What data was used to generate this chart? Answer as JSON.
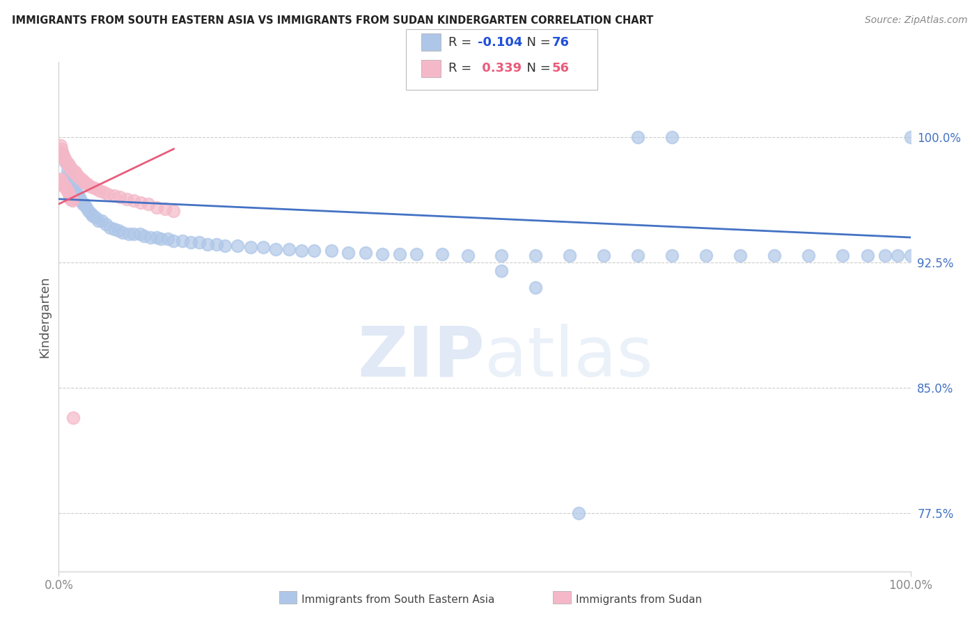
{
  "title": "IMMIGRANTS FROM SOUTH EASTERN ASIA VS IMMIGRANTS FROM SUDAN KINDERGARTEN CORRELATION CHART",
  "source": "Source: ZipAtlas.com",
  "ylabel": "Kindergarten",
  "y_ticks": [
    0.775,
    0.85,
    0.925,
    1.0
  ],
  "y_tick_labels": [
    "77.5%",
    "85.0%",
    "92.5%",
    "100.0%"
  ],
  "xlim": [
    0.0,
    1.0
  ],
  "ylim": [
    0.74,
    1.045
  ],
  "legend_color1": "#aec6e8",
  "legend_color2": "#f4b8c8",
  "blue_color": "#aec6e8",
  "pink_color": "#f4b8c8",
  "trendline1_color": "#4472c4",
  "trendline2_color": "#e85c7a",
  "watermark_zip": "ZIP",
  "watermark_atlas": "atlas",
  "legend_r1_color": "#1f4fd8",
  "legend_r2_color": "#e85c7a",
  "ytick_color": "#4472c4",
  "xtick_color": "#888888",
  "blue_scatter_x": [
    0.005,
    0.008,
    0.01,
    0.012,
    0.014,
    0.016,
    0.018,
    0.02,
    0.022,
    0.024,
    0.026,
    0.028,
    0.03,
    0.032,
    0.035,
    0.038,
    0.04,
    0.043,
    0.046,
    0.05,
    0.055,
    0.06,
    0.065,
    0.07,
    0.075,
    0.082,
    0.088,
    0.095,
    0.1,
    0.108,
    0.115,
    0.12,
    0.128,
    0.135,
    0.145,
    0.155,
    0.165,
    0.175,
    0.185,
    0.195,
    0.21,
    0.225,
    0.24,
    0.255,
    0.27,
    0.285,
    0.3,
    0.32,
    0.34,
    0.36,
    0.38,
    0.4,
    0.42,
    0.45,
    0.48,
    0.52,
    0.56,
    0.6,
    0.64,
    0.68,
    0.72,
    0.76,
    0.8,
    0.84,
    0.88,
    0.92,
    0.95,
    0.97,
    0.985,
    1.0,
    0.68,
    0.72,
    1.0,
    0.52,
    0.56,
    0.61
  ],
  "blue_scatter_y": [
    0.99,
    0.985,
    0.98,
    0.978,
    0.975,
    0.972,
    0.97,
    0.968,
    0.966,
    0.964,
    0.962,
    0.96,
    0.96,
    0.958,
    0.956,
    0.954,
    0.953,
    0.952,
    0.95,
    0.95,
    0.948,
    0.946,
    0.945,
    0.944,
    0.943,
    0.942,
    0.942,
    0.942,
    0.941,
    0.94,
    0.94,
    0.939,
    0.939,
    0.938,
    0.938,
    0.937,
    0.937,
    0.936,
    0.936,
    0.935,
    0.935,
    0.934,
    0.934,
    0.933,
    0.933,
    0.932,
    0.932,
    0.932,
    0.931,
    0.931,
    0.93,
    0.93,
    0.93,
    0.93,
    0.929,
    0.929,
    0.929,
    0.929,
    0.929,
    0.929,
    0.929,
    0.929,
    0.929,
    0.929,
    0.929,
    0.929,
    0.929,
    0.929,
    0.929,
    0.929,
    1.0,
    1.0,
    1.0,
    0.92,
    0.91,
    0.775
  ],
  "pink_scatter_x": [
    0.002,
    0.003,
    0.004,
    0.005,
    0.006,
    0.007,
    0.008,
    0.009,
    0.01,
    0.011,
    0.012,
    0.013,
    0.014,
    0.015,
    0.016,
    0.017,
    0.018,
    0.019,
    0.02,
    0.022,
    0.024,
    0.026,
    0.028,
    0.03,
    0.033,
    0.036,
    0.04,
    0.044,
    0.048,
    0.053,
    0.058,
    0.065,
    0.072,
    0.08,
    0.088,
    0.096,
    0.105,
    0.115,
    0.125,
    0.135,
    0.002,
    0.003,
    0.004,
    0.005,
    0.006,
    0.007,
    0.008,
    0.009,
    0.01,
    0.011,
    0.012,
    0.013,
    0.014,
    0.015,
    0.016,
    0.017
  ],
  "pink_scatter_y": [
    0.995,
    0.993,
    0.991,
    0.989,
    0.988,
    0.987,
    0.986,
    0.985,
    0.984,
    0.984,
    0.983,
    0.982,
    0.982,
    0.981,
    0.98,
    0.98,
    0.979,
    0.979,
    0.978,
    0.977,
    0.976,
    0.975,
    0.974,
    0.973,
    0.972,
    0.971,
    0.97,
    0.969,
    0.968,
    0.967,
    0.966,
    0.965,
    0.964,
    0.963,
    0.962,
    0.961,
    0.96,
    0.958,
    0.957,
    0.956,
    0.975,
    0.974,
    0.973,
    0.972,
    0.971,
    0.97,
    0.97,
    0.969,
    0.968,
    0.967,
    0.966,
    0.965,
    0.963,
    0.963,
    0.962,
    0.832
  ],
  "blue_trend_x": [
    0.0,
    1.0
  ],
  "blue_trend_y": [
    0.963,
    0.94
  ],
  "pink_trend_x": [
    0.0,
    0.135
  ],
  "pink_trend_y": [
    0.96,
    0.993
  ]
}
